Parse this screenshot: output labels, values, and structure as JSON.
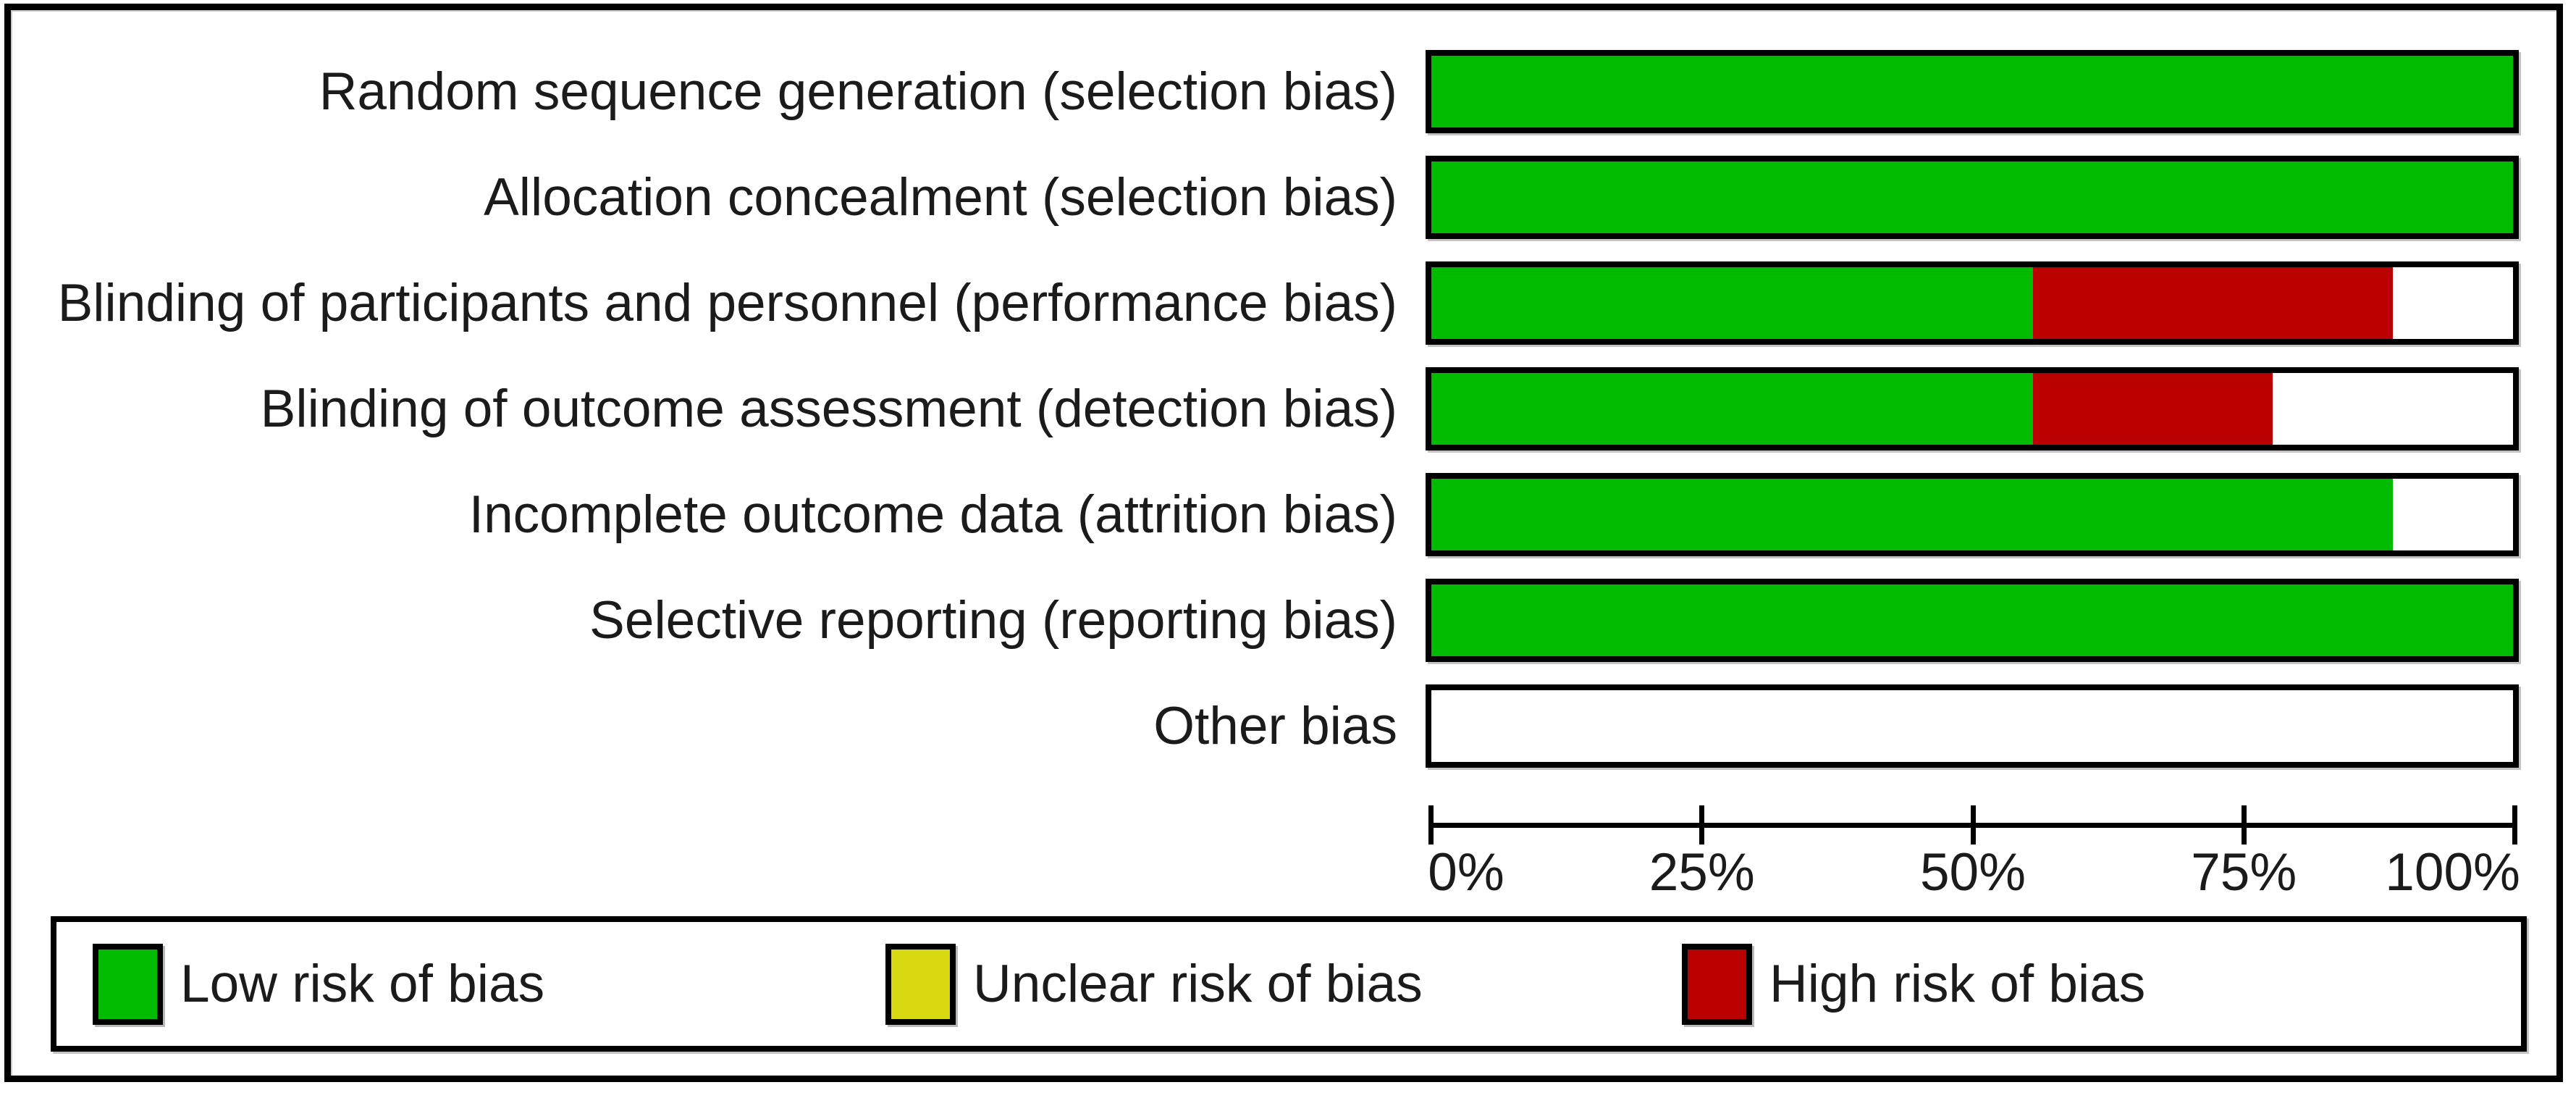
{
  "figure": {
    "kind": "risk-of-bias-graph"
  },
  "chart_data": {
    "type": "bar",
    "orientation": "horizontal-stacked",
    "categories": [
      "Random sequence generation (selection bias)",
      "Allocation concealment (selection bias)",
      "Blinding of participants and personnel (performance bias)",
      "Blinding of outcome assessment (detection bias)",
      "Incomplete outcome data (attrition bias)",
      "Selective reporting (reporting bias)",
      "Other bias"
    ],
    "series": [
      {
        "name": "Low risk of bias",
        "color": "#00BB00",
        "values": [
          100,
          100,
          55.6,
          55.6,
          88.9,
          100,
          0
        ]
      },
      {
        "name": "Unclear risk of bias",
        "color": "#D9D911",
        "values": [
          0,
          0,
          0,
          0,
          0,
          0,
          0
        ]
      },
      {
        "name": "High risk of bias",
        "color": "#BB0000",
        "values": [
          0,
          0,
          33.3,
          22.2,
          0,
          0,
          0
        ]
      }
    ],
    "xlim": [
      0,
      100
    ],
    "x_ticks": [
      "0%",
      "25%",
      "50%",
      "75%",
      "100%"
    ],
    "grid": false,
    "legend_position": "bottom",
    "legend": [
      {
        "label": "Low risk of bias",
        "color": "#00BB00"
      },
      {
        "label": "Unclear risk of bias",
        "color": "#D9D911"
      },
      {
        "label": "High risk of bias",
        "color": "#BB0000"
      }
    ],
    "colors": {
      "bar_border": "#000000",
      "empty_fill": "#ffffff",
      "text": "#1b1b1b"
    }
  }
}
